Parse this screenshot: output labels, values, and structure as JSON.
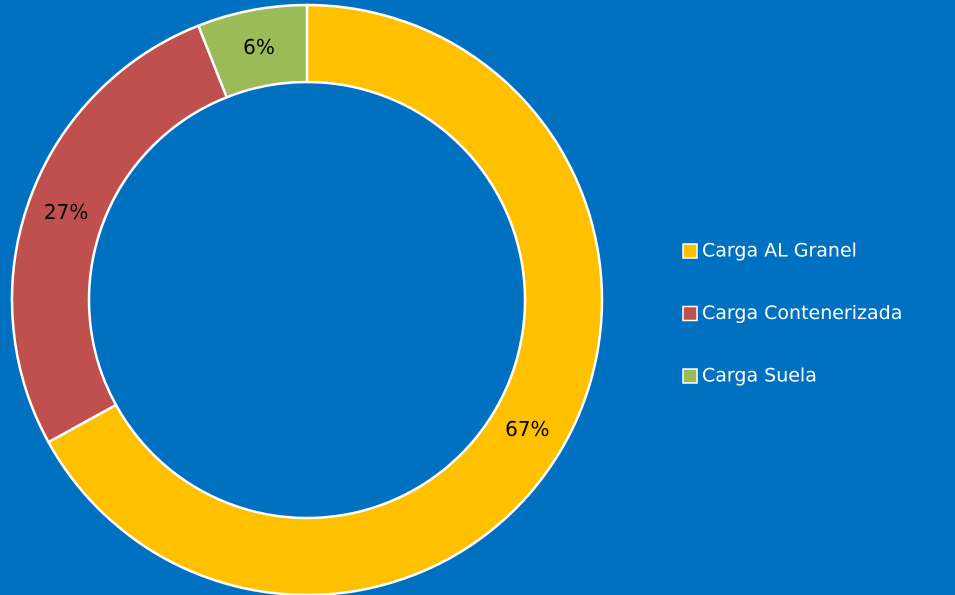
{
  "chart_data": {
    "type": "donut",
    "categories": [
      "Carga AL Granel",
      "Carga Contenerizada",
      "Carga Suela"
    ],
    "values": [
      67,
      27,
      6
    ],
    "value_labels": [
      "67%",
      "27%",
      "6%"
    ],
    "colors": [
      "#ffc000",
      "#c0504d",
      "#9bbb59"
    ],
    "legend": "right"
  }
}
